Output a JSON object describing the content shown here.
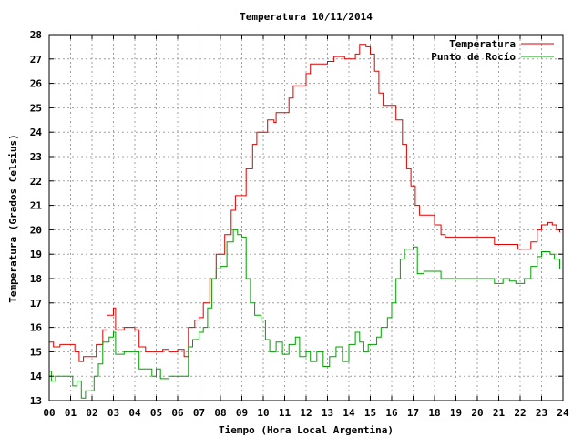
{
  "chart_data": {
    "type": "line",
    "title": "Temperatura 10/11/2014",
    "xlabel": "Tiempo (Hora Local Argentina)",
    "ylabel": "Temperatura (Grados Celsius)",
    "xlim": [
      0,
      24
    ],
    "ylim": [
      13,
      28
    ],
    "x_ticks": [
      "00",
      "01",
      "02",
      "03",
      "04",
      "05",
      "06",
      "07",
      "08",
      "09",
      "10",
      "11",
      "12",
      "13",
      "14",
      "15",
      "16",
      "17",
      "18",
      "19",
      "20",
      "21",
      "22",
      "23",
      "24"
    ],
    "y_ticks": [
      "13",
      "14",
      "15",
      "16",
      "17",
      "18",
      "19",
      "20",
      "21",
      "22",
      "23",
      "24",
      "25",
      "26",
      "27",
      "28"
    ],
    "grid": true,
    "legend_position": "top-right",
    "series": [
      {
        "name": "Temperatura",
        "color": "#e00000",
        "points": [
          [
            0.0,
            15.4
          ],
          [
            0.2,
            15.2
          ],
          [
            0.5,
            15.3
          ],
          [
            1.0,
            15.3
          ],
          [
            1.2,
            15.0
          ],
          [
            1.4,
            14.6
          ],
          [
            1.6,
            14.8
          ],
          [
            2.0,
            14.8
          ],
          [
            2.2,
            15.3
          ],
          [
            2.5,
            15.9
          ],
          [
            2.7,
            16.5
          ],
          [
            3.0,
            16.8
          ],
          [
            3.1,
            15.9
          ],
          [
            3.5,
            16.0
          ],
          [
            4.0,
            15.9
          ],
          [
            4.2,
            15.2
          ],
          [
            4.5,
            15.0
          ],
          [
            5.0,
            15.0
          ],
          [
            5.3,
            15.1
          ],
          [
            5.6,
            15.0
          ],
          [
            6.0,
            15.1
          ],
          [
            6.3,
            14.8
          ],
          [
            6.5,
            16.0
          ],
          [
            6.8,
            16.3
          ],
          [
            7.0,
            16.4
          ],
          [
            7.2,
            17.0
          ],
          [
            7.5,
            18.0
          ],
          [
            7.8,
            19.0
          ],
          [
            8.0,
            19.0
          ],
          [
            8.2,
            19.8
          ],
          [
            8.5,
            20.8
          ],
          [
            8.7,
            21.4
          ],
          [
            9.0,
            21.4
          ],
          [
            9.2,
            22.5
          ],
          [
            9.5,
            23.5
          ],
          [
            9.7,
            24.0
          ],
          [
            10.0,
            24.0
          ],
          [
            10.2,
            24.5
          ],
          [
            10.5,
            24.4
          ],
          [
            10.6,
            24.8
          ],
          [
            11.0,
            24.8
          ],
          [
            11.2,
            25.4
          ],
          [
            11.4,
            25.9
          ],
          [
            11.8,
            25.9
          ],
          [
            12.0,
            26.4
          ],
          [
            12.2,
            26.8
          ],
          [
            12.6,
            26.8
          ],
          [
            13.0,
            26.9
          ],
          [
            13.3,
            27.1
          ],
          [
            13.8,
            27.0
          ],
          [
            14.1,
            27.0
          ],
          [
            14.3,
            27.2
          ],
          [
            14.5,
            27.6
          ],
          [
            14.8,
            27.5
          ],
          [
            15.0,
            27.2
          ],
          [
            15.2,
            26.5
          ],
          [
            15.4,
            25.6
          ],
          [
            15.6,
            25.1
          ],
          [
            16.0,
            25.1
          ],
          [
            16.2,
            24.5
          ],
          [
            16.5,
            23.5
          ],
          [
            16.7,
            22.5
          ],
          [
            16.9,
            21.8
          ],
          [
            17.1,
            21.0
          ],
          [
            17.3,
            20.6
          ],
          [
            17.8,
            20.6
          ],
          [
            18.0,
            20.2
          ],
          [
            18.3,
            19.8
          ],
          [
            18.5,
            19.7
          ],
          [
            19.0,
            19.7
          ],
          [
            19.5,
            19.7
          ],
          [
            20.0,
            19.7
          ],
          [
            20.5,
            19.7
          ],
          [
            20.8,
            19.4
          ],
          [
            21.5,
            19.4
          ],
          [
            21.9,
            19.2
          ],
          [
            22.3,
            19.2
          ],
          [
            22.5,
            19.5
          ],
          [
            22.8,
            20.0
          ],
          [
            23.0,
            20.2
          ],
          [
            23.3,
            20.3
          ],
          [
            23.5,
            20.2
          ],
          [
            23.7,
            20.0
          ],
          [
            23.85,
            19.9
          ]
        ]
      },
      {
        "name": "Punto de Rocío",
        "color": "#00a000",
        "points": [
          [
            0.0,
            14.2
          ],
          [
            0.1,
            13.8
          ],
          [
            0.3,
            14.0
          ],
          [
            0.6,
            14.0
          ],
          [
            1.0,
            14.0
          ],
          [
            1.1,
            13.6
          ],
          [
            1.3,
            13.8
          ],
          [
            1.5,
            13.1
          ],
          [
            1.7,
            13.4
          ],
          [
            2.0,
            13.4
          ],
          [
            2.1,
            14.0
          ],
          [
            2.3,
            14.5
          ],
          [
            2.5,
            15.4
          ],
          [
            2.8,
            15.6
          ],
          [
            3.0,
            15.8
          ],
          [
            3.1,
            14.9
          ],
          [
            3.5,
            15.0
          ],
          [
            3.9,
            15.0
          ],
          [
            4.2,
            14.3
          ],
          [
            4.5,
            14.3
          ],
          [
            4.8,
            14.0
          ],
          [
            5.0,
            14.3
          ],
          [
            5.2,
            13.9
          ],
          [
            5.6,
            14.0
          ],
          [
            6.0,
            14.0
          ],
          [
            6.3,
            14.0
          ],
          [
            6.5,
            15.2
          ],
          [
            6.7,
            15.5
          ],
          [
            7.0,
            15.8
          ],
          [
            7.2,
            16.0
          ],
          [
            7.4,
            16.8
          ],
          [
            7.6,
            18.0
          ],
          [
            7.8,
            18.4
          ],
          [
            8.0,
            18.5
          ],
          [
            8.3,
            19.5
          ],
          [
            8.6,
            20.0
          ],
          [
            8.8,
            19.8
          ],
          [
            9.0,
            19.7
          ],
          [
            9.2,
            18.0
          ],
          [
            9.4,
            17.0
          ],
          [
            9.6,
            16.5
          ],
          [
            9.9,
            16.3
          ],
          [
            10.1,
            15.5
          ],
          [
            10.3,
            15.0
          ],
          [
            10.6,
            15.4
          ],
          [
            10.9,
            14.9
          ],
          [
            11.2,
            15.3
          ],
          [
            11.5,
            15.6
          ],
          [
            11.7,
            14.8
          ],
          [
            12.0,
            15.0
          ],
          [
            12.2,
            14.6
          ],
          [
            12.5,
            15.0
          ],
          [
            12.8,
            14.4
          ],
          [
            13.1,
            14.8
          ],
          [
            13.4,
            15.2
          ],
          [
            13.7,
            14.6
          ],
          [
            14.0,
            15.3
          ],
          [
            14.3,
            15.8
          ],
          [
            14.5,
            15.4
          ],
          [
            14.7,
            15.0
          ],
          [
            14.9,
            15.3
          ],
          [
            15.1,
            15.3
          ],
          [
            15.3,
            15.6
          ],
          [
            15.5,
            16.0
          ],
          [
            15.8,
            16.4
          ],
          [
            16.0,
            17.0
          ],
          [
            16.2,
            18.0
          ],
          [
            16.4,
            18.8
          ],
          [
            16.6,
            19.2
          ],
          [
            17.0,
            19.3
          ],
          [
            17.2,
            18.2
          ],
          [
            17.5,
            18.3
          ],
          [
            18.0,
            18.3
          ],
          [
            18.3,
            18.0
          ],
          [
            18.8,
            18.0
          ],
          [
            19.5,
            18.0
          ],
          [
            20.0,
            18.0
          ],
          [
            20.5,
            18.0
          ],
          [
            20.8,
            17.8
          ],
          [
            21.2,
            18.0
          ],
          [
            21.5,
            17.9
          ],
          [
            21.8,
            17.8
          ],
          [
            22.2,
            18.0
          ],
          [
            22.5,
            18.5
          ],
          [
            22.8,
            18.9
          ],
          [
            23.0,
            19.1
          ],
          [
            23.4,
            19.0
          ],
          [
            23.6,
            18.8
          ],
          [
            23.85,
            18.4
          ]
        ]
      }
    ]
  }
}
